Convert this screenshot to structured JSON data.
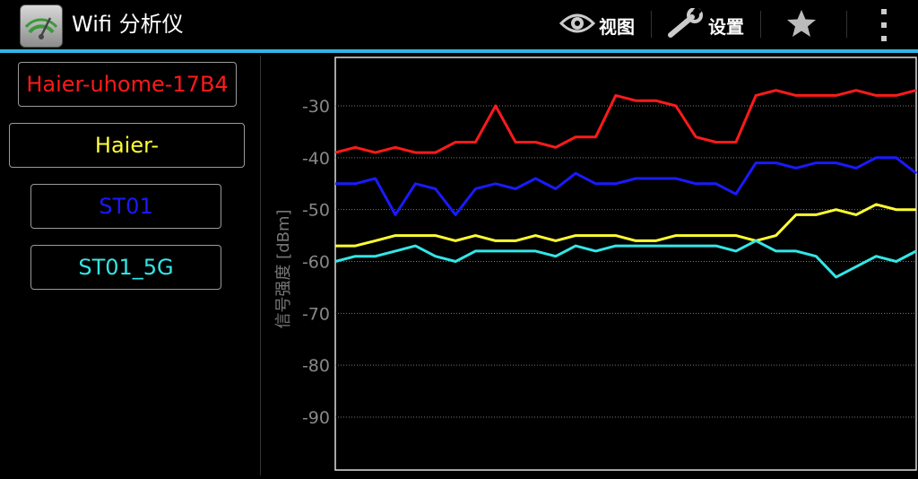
{
  "app": {
    "title": "Wifi 分析仪",
    "icon": "wifi-analyzer-app-icon"
  },
  "actionbar": {
    "view": {
      "label": "视图",
      "icon": "eye-icon"
    },
    "settings": {
      "label": "设置",
      "icon": "wrench-icon"
    },
    "favorite": {
      "icon": "star-icon"
    },
    "overflow": {
      "icon": "overflow-menu-icon"
    }
  },
  "colors": {
    "accent": "#33b5e5",
    "red": "#ff1a1a",
    "yellow": "#ffff33",
    "blue": "#1a1aff",
    "cyan": "#33e6e6"
  },
  "networks": [
    {
      "ssid": "Haier-uhome-17B4",
      "color": "#ff1a1a"
    },
    {
      "ssid": "Haier-",
      "color": "#ffff33"
    },
    {
      "ssid": "ST01",
      "color": "#1a1aff"
    },
    {
      "ssid": "ST01_5G",
      "color": "#33e6e6"
    }
  ],
  "chart_data": {
    "type": "line",
    "ylabel": "信号强度 [dBm]",
    "ylim": [
      -100,
      -20
    ],
    "yticks": [
      -30,
      -40,
      -50,
      -60,
      -70,
      -80,
      -90
    ],
    "grid": true,
    "series": [
      {
        "name": "Haier-uhome-17B4",
        "color": "#ff1a1a",
        "values": [
          -39,
          -38,
          -39,
          -38,
          -39,
          -39,
          -37,
          -37,
          -30,
          -37,
          -37,
          -38,
          -36,
          -36,
          -28,
          -29,
          -29,
          -30,
          -36,
          -37,
          -37,
          -28,
          -27,
          -28,
          -28,
          -28,
          -27,
          -28,
          -28,
          -27
        ]
      },
      {
        "name": "Haier-",
        "color": "#ffff33",
        "values": [
          -57,
          -57,
          -56,
          -55,
          -55,
          -55,
          -56,
          -55,
          -56,
          -56,
          -55,
          -56,
          -55,
          -55,
          -55,
          -56,
          -56,
          -55,
          -55,
          -55,
          -55,
          -56,
          -55,
          -51,
          -51,
          -50,
          -51,
          -49,
          -50,
          -50
        ]
      },
      {
        "name": "ST01",
        "color": "#1a1aff",
        "values": [
          -45,
          -45,
          -44,
          -51,
          -45,
          -46,
          -51,
          -46,
          -45,
          -46,
          -44,
          -46,
          -43,
          -45,
          -45,
          -44,
          -44,
          -44,
          -45,
          -45,
          -47,
          -41,
          -41,
          -42,
          -41,
          -41,
          -42,
          -40,
          -40,
          -43
        ]
      },
      {
        "name": "ST01_5G",
        "color": "#33e6e6",
        "values": [
          -60,
          -59,
          -59,
          -58,
          -57,
          -59,
          -60,
          -58,
          -58,
          -58,
          -58,
          -59,
          -57,
          -58,
          -57,
          -57,
          -57,
          -57,
          -57,
          -57,
          -58,
          -56,
          -58,
          -58,
          -59,
          -63,
          -61,
          -59,
          -60,
          -58
        ]
      }
    ]
  }
}
